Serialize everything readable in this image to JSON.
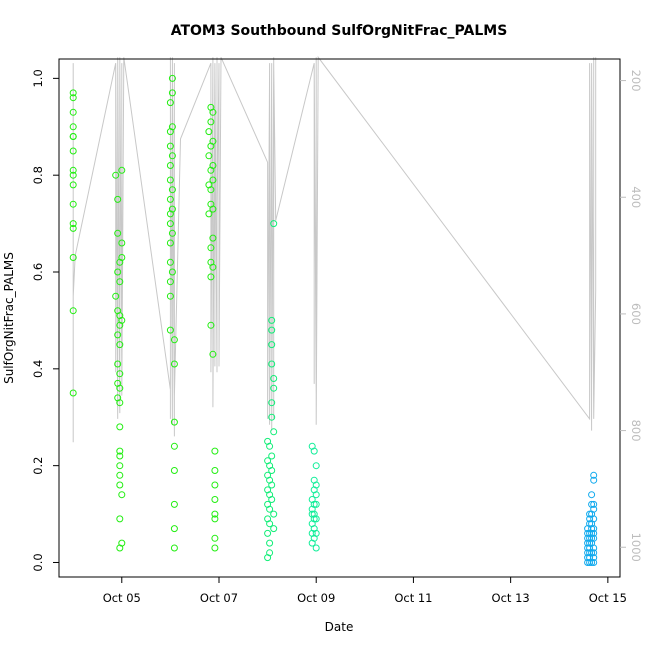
{
  "chart_data": {
    "type": "scatter",
    "title": "ATOM3 Southbound SulfOrgNitFrac_PALMS",
    "xlabel": "Date",
    "ylabel": "SulfOrgNitFrac_PALMS",
    "x_ticks": [
      "Oct 05",
      "Oct 07",
      "Oct 09",
      "Oct 11",
      "Oct 13",
      "Oct 15"
    ],
    "xlim": [
      "2017-10-03 17:00",
      "2017-10-15 06:00"
    ],
    "ylim": [
      -0.03,
      1.04
    ],
    "y_ticks": [
      0.0,
      0.2,
      0.4,
      0.6,
      0.8,
      1.0
    ],
    "y2_ticks": [
      200,
      400,
      600,
      800,
      1000
    ],
    "y2_lim": [
      163,
      1051
    ],
    "y2_inverted": true,
    "grid": false,
    "marker": "open-circle",
    "series": [
      {
        "color": "#22ee11",
        "x": [
          "2017-10-04 00:00",
          "2017-10-04 00:00",
          "2017-10-04 00:00",
          "2017-10-04 00:00",
          "2017-10-04 00:00",
          "2017-10-04 00:00",
          "2017-10-04 00:00",
          "2017-10-04 00:00",
          "2017-10-04 00:00",
          "2017-10-04 00:00",
          "2017-10-04 00:00",
          "2017-10-04 00:00",
          "2017-10-04 00:00",
          "2017-10-04 00:00",
          "2017-10-04 00:00",
          "2017-10-04 00:00"
        ],
        "y": [
          0.97,
          0.96,
          0.93,
          0.9,
          0.88,
          0.85,
          0.81,
          0.8,
          0.78,
          0.74,
          0.7,
          0.69,
          0.63,
          0.52,
          0.35,
          0.88
        ]
      },
      {
        "color": "#22ee11",
        "x": [
          "2017-10-04 21:00",
          "2017-10-04 21:00",
          "2017-10-04 22:00",
          "2017-10-04 22:00",
          "2017-10-04 22:00",
          "2017-10-04 22:00",
          "2017-10-04 22:00",
          "2017-10-04 22:00",
          "2017-10-04 22:00",
          "2017-10-04 22:00",
          "2017-10-04 23:00",
          "2017-10-04 23:00",
          "2017-10-04 23:00",
          "2017-10-04 23:00",
          "2017-10-04 23:00",
          "2017-10-04 23:00",
          "2017-10-04 23:00",
          "2017-10-04 23:00",
          "2017-10-04 23:00",
          "2017-10-04 23:00",
          "2017-10-04 23:00",
          "2017-10-04 23:00",
          "2017-10-04 23:00",
          "2017-10-04 23:00",
          "2017-10-04 23:00",
          "2017-10-04 23:00",
          "2017-10-05 00:00",
          "2017-10-05 00:00",
          "2017-10-05 00:00",
          "2017-10-05 00:00",
          "2017-10-05 00:00",
          "2017-10-05 00:00"
        ],
        "y": [
          0.55,
          0.8,
          0.75,
          0.68,
          0.6,
          0.52,
          0.47,
          0.41,
          0.37,
          0.34,
          0.62,
          0.58,
          0.51,
          0.49,
          0.45,
          0.39,
          0.36,
          0.33,
          0.28,
          0.23,
          0.22,
          0.2,
          0.18,
          0.16,
          0.09,
          0.03,
          0.81,
          0.66,
          0.63,
          0.5,
          0.14,
          0.04
        ]
      },
      {
        "color": "#22ee11",
        "x": [
          "2017-10-06 00:00",
          "2017-10-06 00:00",
          "2017-10-06 00:00",
          "2017-10-06 00:00",
          "2017-10-06 00:00",
          "2017-10-06 00:00",
          "2017-10-06 00:00",
          "2017-10-06 00:00",
          "2017-10-06 00:00",
          "2017-10-06 00:00",
          "2017-10-06 00:00",
          "2017-10-06 00:00",
          "2017-10-06 00:00",
          "2017-10-06 01:00",
          "2017-10-06 01:00",
          "2017-10-06 01:00",
          "2017-10-06 01:00",
          "2017-10-06 01:00",
          "2017-10-06 01:00",
          "2017-10-06 01:00",
          "2017-10-06 01:00",
          "2017-10-06 02:00",
          "2017-10-06 02:00",
          "2017-10-06 02:00",
          "2017-10-06 02:00",
          "2017-10-06 02:00",
          "2017-10-06 02:00",
          "2017-10-06 02:00",
          "2017-10-06 02:00"
        ],
        "y": [
          0.95,
          0.89,
          0.86,
          0.82,
          0.79,
          0.75,
          0.72,
          0.7,
          0.66,
          0.62,
          0.58,
          0.55,
          0.48,
          1.0,
          0.97,
          0.9,
          0.84,
          0.77,
          0.73,
          0.68,
          0.6,
          0.46,
          0.41,
          0.29,
          0.24,
          0.19,
          0.12,
          0.07,
          0.03
        ]
      },
      {
        "color": "#22ee11",
        "x": [
          "2017-10-06 19:00",
          "2017-10-06 19:00",
          "2017-10-06 19:00",
          "2017-10-06 19:00",
          "2017-10-06 20:00",
          "2017-10-06 20:00",
          "2017-10-06 20:00",
          "2017-10-06 20:00",
          "2017-10-06 20:00",
          "2017-10-06 20:00",
          "2017-10-06 20:00",
          "2017-10-06 20:00",
          "2017-10-06 20:00",
          "2017-10-06 20:00",
          "2017-10-06 21:00",
          "2017-10-06 21:00",
          "2017-10-06 21:00",
          "2017-10-06 21:00",
          "2017-10-06 21:00",
          "2017-10-06 21:00",
          "2017-10-06 21:00",
          "2017-10-06 21:00",
          "2017-10-06 22:00",
          "2017-10-06 22:00",
          "2017-10-06 22:00",
          "2017-10-06 22:00",
          "2017-10-06 22:00",
          "2017-10-06 22:00",
          "2017-10-06 22:00",
          "2017-10-06 22:00"
        ],
        "y": [
          0.89,
          0.84,
          0.78,
          0.72,
          0.94,
          0.91,
          0.86,
          0.81,
          0.77,
          0.74,
          0.65,
          0.62,
          0.59,
          0.49,
          0.93,
          0.87,
          0.82,
          0.79,
          0.73,
          0.67,
          0.61,
          0.43,
          0.19,
          0.13,
          0.09,
          0.05,
          0.23,
          0.16,
          0.1,
          0.03
        ]
      },
      {
        "color": "#11ee77",
        "x": [
          "2017-10-08 00:00",
          "2017-10-08 00:00",
          "2017-10-08 00:00",
          "2017-10-08 00:00",
          "2017-10-08 00:00",
          "2017-10-08 00:00",
          "2017-10-08 00:00",
          "2017-10-08 00:00",
          "2017-10-08 01:00",
          "2017-10-08 01:00",
          "2017-10-08 01:00",
          "2017-10-08 01:00",
          "2017-10-08 01:00",
          "2017-10-08 01:00",
          "2017-10-08 01:00",
          "2017-10-08 01:00",
          "2017-10-08 02:00",
          "2017-10-08 02:00",
          "2017-10-08 02:00",
          "2017-10-08 02:00",
          "2017-10-08 02:00",
          "2017-10-08 02:00",
          "2017-10-08 02:00",
          "2017-10-08 02:00",
          "2017-10-08 02:00",
          "2017-10-08 02:00",
          "2017-10-08 03:00",
          "2017-10-08 03:00",
          "2017-10-08 03:00",
          "2017-10-08 03:00",
          "2017-10-08 03:00",
          "2017-10-08 03:00"
        ],
        "y": [
          0.25,
          0.21,
          0.18,
          0.15,
          0.12,
          0.09,
          0.06,
          0.01,
          0.24,
          0.2,
          0.17,
          0.14,
          0.11,
          0.08,
          0.04,
          0.02,
          0.5,
          0.48,
          0.45,
          0.41,
          0.33,
          0.3,
          0.22,
          0.19,
          0.16,
          0.13,
          0.7,
          0.38,
          0.36,
          0.27,
          0.1,
          0.07
        ]
      },
      {
        "color": "#11ee99",
        "x": [
          "2017-10-08 22:00",
          "2017-10-08 22:00",
          "2017-10-08 22:00",
          "2017-10-08 22:00",
          "2017-10-08 22:00",
          "2017-10-08 22:00",
          "2017-10-08 22:00",
          "2017-10-08 23:00",
          "2017-10-08 23:00",
          "2017-10-08 23:00",
          "2017-10-08 23:00",
          "2017-10-08 23:00",
          "2017-10-08 23:00",
          "2017-10-08 23:00",
          "2017-10-08 23:00",
          "2017-10-09 00:00",
          "2017-10-09 00:00",
          "2017-10-09 00:00",
          "2017-10-09 00:00",
          "2017-10-09 00:00",
          "2017-10-09 00:00",
          "2017-10-09 00:00"
        ],
        "y": [
          0.24,
          0.13,
          0.11,
          0.1,
          0.08,
          0.06,
          0.04,
          0.23,
          0.17,
          0.15,
          0.12,
          0.1,
          0.09,
          0.07,
          0.05,
          0.2,
          0.16,
          0.14,
          0.12,
          0.09,
          0.06,
          0.03
        ]
      },
      {
        "color": "#11aaee",
        "x": [
          "2017-10-14 14:00",
          "2017-10-14 14:00",
          "2017-10-14 14:00",
          "2017-10-14 14:00",
          "2017-10-14 14:00",
          "2017-10-14 14:00",
          "2017-10-14 14:00",
          "2017-10-14 14:00",
          "2017-10-14 15:00",
          "2017-10-14 15:00",
          "2017-10-14 15:00",
          "2017-10-14 15:00",
          "2017-10-14 15:00",
          "2017-10-14 15:00",
          "2017-10-14 15:00",
          "2017-10-14 15:00",
          "2017-10-14 15:00",
          "2017-10-14 15:00",
          "2017-10-14 16:00",
          "2017-10-14 16:00",
          "2017-10-14 16:00",
          "2017-10-14 16:00",
          "2017-10-14 16:00",
          "2017-10-14 16:00",
          "2017-10-14 16:00",
          "2017-10-14 16:00",
          "2017-10-14 16:00",
          "2017-10-14 16:00",
          "2017-10-14 17:00",
          "2017-10-14 17:00",
          "2017-10-14 17:00",
          "2017-10-14 17:00",
          "2017-10-14 17:00",
          "2017-10-14 17:00",
          "2017-10-14 17:00",
          "2017-10-14 17:00",
          "2017-10-14 17:00",
          "2017-10-14 17:00",
          "2017-10-14 17:00",
          "2017-10-14 17:00"
        ],
        "y": [
          0.06,
          0.05,
          0.04,
          0.03,
          0.02,
          0.01,
          0.0,
          0.07,
          0.1,
          0.08,
          0.06,
          0.05,
          0.04,
          0.03,
          0.02,
          0.01,
          0.0,
          0.09,
          0.14,
          0.12,
          0.1,
          0.08,
          0.06,
          0.05,
          0.04,
          0.02,
          0.0,
          0.07,
          0.18,
          0.17,
          0.11,
          0.09,
          0.07,
          0.06,
          0.05,
          0.03,
          0.02,
          0.01,
          0.0,
          0.12
        ]
      }
    ],
    "secondary_line": {
      "color": "#c8c8c8",
      "axis": "y2",
      "x": [
        "2017-10-04 00:00",
        "2017-10-04 00:00",
        "2017-10-04 00:00",
        "2017-10-04 00:00",
        "2017-10-04 00:00",
        "2017-10-04 00:00",
        "2017-10-04 01:00",
        "2017-10-04 21:00",
        "2017-10-04 21:00",
        "2017-10-04 21:00",
        "2017-10-04 22:00",
        "2017-10-04 22:00",
        "2017-10-04 22:00",
        "2017-10-04 22:00",
        "2017-10-04 23:00",
        "2017-10-04 23:00",
        "2017-10-04 23:00",
        "2017-10-04 23:00",
        "2017-10-05 00:00",
        "2017-10-05 00:00",
        "2017-10-05 00:00",
        "2017-10-05 01:00",
        "2017-10-06 00:00",
        "2017-10-06 00:00",
        "2017-10-06 00:00",
        "2017-10-06 00:00",
        "2017-10-06 01:00",
        "2017-10-06 01:00",
        "2017-10-06 02:00",
        "2017-10-06 02:00",
        "2017-10-06 02:00",
        "2017-10-06 05:00",
        "2017-10-06 20:00",
        "2017-10-06 20:00",
        "2017-10-06 21:00",
        "2017-10-06 21:00",
        "2017-10-06 21:00",
        "2017-10-06 21:00",
        "2017-10-06 22:00",
        "2017-10-06 22:00",
        "2017-10-06 22:00",
        "2017-10-06 23:00",
        "2017-10-06 23:00",
        "2017-10-06 23:00",
        "2017-10-07 00:00",
        "2017-10-07 00:00",
        "2017-10-07 01:00",
        "2017-10-08 00:00",
        "2017-10-08 00:00",
        "2017-10-08 01:00",
        "2017-10-08 01:00",
        "2017-10-08 02:00",
        "2017-10-08 02:00",
        "2017-10-08 03:00",
        "2017-10-08 03:00",
        "2017-10-08 03:00",
        "2017-10-08 04:00",
        "2017-10-08 23:00",
        "2017-10-08 23:00",
        "2017-10-08 23:00",
        "2017-10-09 00:00",
        "2017-10-09 00:00",
        "2017-10-09 00:00",
        "2017-10-09 01:00",
        "2017-10-14 15:00",
        "2017-10-14 15:00",
        "2017-10-14 16:00",
        "2017-10-14 16:00",
        "2017-10-14 17:00",
        "2017-10-14 17:00",
        "2017-10-14 17:00",
        "2017-10-14 18:00",
        "2017-10-14 18:00"
      ],
      "y": [
        600,
        820,
        170,
        700,
        500,
        570,
        500,
        170,
        700,
        170,
        780,
        170,
        780,
        160,
        770,
        160,
        760,
        170,
        700,
        170,
        740,
        160,
        730,
        160,
        780,
        170,
        790,
        160,
        810,
        170,
        740,
        300,
        170,
        700,
        170,
        720,
        160,
        760,
        170,
        690,
        170,
        700,
        160,
        440,
        170,
        690,
        160,
        340,
        780,
        170,
        790,
        170,
        800,
        160,
        780,
        170,
        440,
        170,
        720,
        170,
        740,
        160,
        790,
        160,
        780,
        170,
        800,
        170,
        780,
        160,
        780,
        560,
        160
      ]
    }
  }
}
